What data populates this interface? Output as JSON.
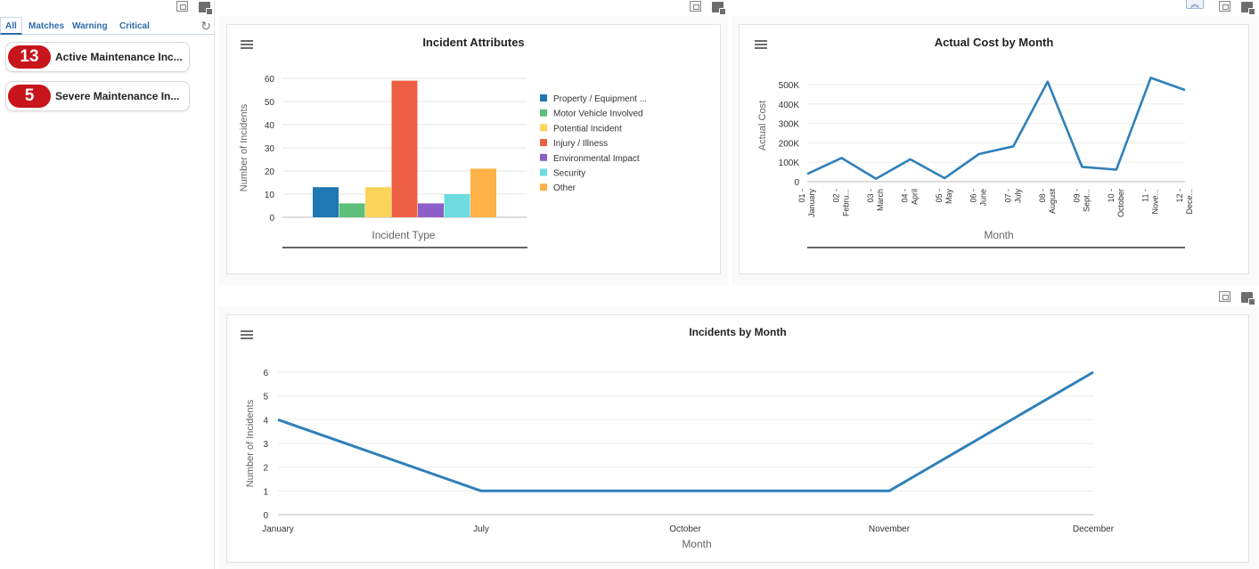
{
  "left": {
    "tabs": [
      "All",
      "Matches",
      "Warning",
      "Critical"
    ],
    "alerts": [
      {
        "count": "13",
        "label": "Active Maintenance Inc..."
      },
      {
        "count": "5",
        "label": "Severe Maintenance In..."
      }
    ]
  },
  "chart_data": [
    {
      "type": "bar",
      "title": "Incident Attributes",
      "xlabel": "Incident Type",
      "ylabel": "Number of Incidents",
      "ylim": [
        0,
        60
      ],
      "yticks": [
        0,
        10,
        20,
        30,
        40,
        50,
        60
      ],
      "grid": true,
      "legend_position": "right",
      "series": [
        {
          "name": "Property / Equipment ...",
          "value": 13,
          "color": "#1f77b4"
        },
        {
          "name": "Motor Vehicle Involved",
          "value": 6,
          "color": "#5dbf79"
        },
        {
          "name": "Potential Incident",
          "value": 13,
          "color": "#fcd45a"
        },
        {
          "name": "Injury / Illness",
          "value": 59,
          "color": "#ee6043"
        },
        {
          "name": "Environmental Impact",
          "value": 6,
          "color": "#8e5ec8"
        },
        {
          "name": "Security",
          "value": 10,
          "color": "#6ddcdf"
        },
        {
          "name": "Other",
          "value": 21,
          "color": "#fdb147"
        }
      ]
    },
    {
      "type": "line",
      "title": "Actual Cost by Month",
      "xlabel": "Month",
      "ylabel": "Actual Cost",
      "ylim": [
        0,
        500000
      ],
      "yticks": [
        0,
        100000,
        200000,
        300000,
        400000,
        500000
      ],
      "ytick_labels": [
        "0",
        "100K",
        "200K",
        "300K",
        "400K",
        "500K"
      ],
      "grid": true,
      "color": "#2f80b9",
      "categories": [
        "01 - January",
        "02 - Febru...",
        "03 - March",
        "04 - April",
        "05 - May",
        "06 - June",
        "07 - July",
        "08 - August",
        "09 - Sept...",
        "10 - October",
        "11 - Nove...",
        "12 - Dece..."
      ],
      "values": [
        40000,
        122000,
        15000,
        115000,
        18000,
        142000,
        182000,
        515000,
        76000,
        62000,
        535000,
        472000
      ]
    },
    {
      "type": "line",
      "title": "Incidents by Month",
      "xlabel": "Month",
      "ylabel": "Number of Incidents",
      "ylim": [
        0,
        6
      ],
      "yticks": [
        0,
        1,
        2,
        3,
        4,
        5,
        6
      ],
      "grid": true,
      "color": "#2f80b9",
      "categories": [
        "January",
        "July",
        "October",
        "November",
        "December"
      ],
      "values": [
        4,
        1,
        1,
        1,
        6
      ]
    }
  ]
}
